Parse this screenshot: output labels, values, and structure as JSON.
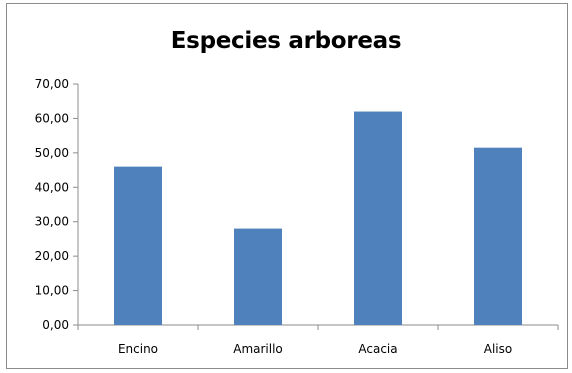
{
  "chart_data": {
    "type": "bar",
    "title": "Especies arboreas",
    "xlabel": "",
    "ylabel": "",
    "categories": [
      "Encino",
      "Amarillo",
      "Acacia",
      "Aliso"
    ],
    "values": [
      46.0,
      28.0,
      62.0,
      51.5
    ],
    "ylim": [
      0,
      70
    ],
    "yticks": [
      "0,00",
      "10,00",
      "20,00",
      "30,00",
      "40,00",
      "50,00",
      "60,00",
      "70,00"
    ],
    "grid": false,
    "legend": "none",
    "bar_color": "#4f81bd"
  }
}
